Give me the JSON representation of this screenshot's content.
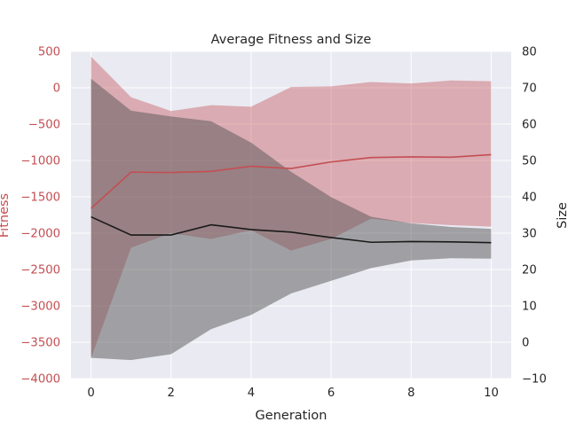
{
  "chart_data": {
    "type": "line",
    "title": "Average Fitness and Size",
    "xlabel": "Generation",
    "ylabel_left": "Fitness",
    "ylabel_right": "Size",
    "x": [
      0,
      1,
      2,
      3,
      4,
      5,
      6,
      7,
      8,
      9,
      10
    ],
    "xlim": [
      -0.5,
      10.5
    ],
    "ylim_left": [
      -4000,
      500
    ],
    "ylim_right": [
      -10,
      80
    ],
    "x_ticks": [
      0,
      2,
      4,
      6,
      8,
      10
    ],
    "y_ticks_left": [
      500,
      0,
      -500,
      -1000,
      -1500,
      -2000,
      -2500,
      -3000,
      -3500,
      -4000
    ],
    "y_ticks_right": [
      80,
      70,
      60,
      50,
      40,
      30,
      20,
      10,
      0,
      -10
    ],
    "grid": true,
    "series": [
      {
        "axis": "left",
        "color": "#c44e52",
        "band_color": "#c44e52",
        "band_opacity": 0.4,
        "values": [
          -1660,
          -1160,
          -1165,
          -1150,
          -1080,
          -1110,
          -1020,
          -960,
          -950,
          -955,
          -920
        ],
        "upper": [
          430,
          -130,
          -320,
          -240,
          -260,
          10,
          20,
          80,
          60,
          100,
          90
        ],
        "lower": [
          -3720,
          -2200,
          -2000,
          -2080,
          -1960,
          -2240,
          -2080,
          -1800,
          -1860,
          -1890,
          -1910
        ]
      },
      {
        "axis": "right",
        "color": "#1a1a1a",
        "band_color": "#555555",
        "band_opacity": 0.5,
        "values": [
          34.5,
          29.5,
          29.5,
          32.3,
          31.0,
          30.3,
          28.8,
          27.5,
          27.7,
          27.6,
          27.4
        ],
        "upper": [
          72.5,
          63.7,
          62.1,
          60.8,
          54.9,
          46.9,
          39.9,
          34.5,
          32.7,
          31.7,
          31.2
        ],
        "lower": [
          -4.3,
          -4.9,
          -3.3,
          3.6,
          7.5,
          13.4,
          16.9,
          20.4,
          22.5,
          23.1,
          23.0
        ]
      }
    ]
  }
}
